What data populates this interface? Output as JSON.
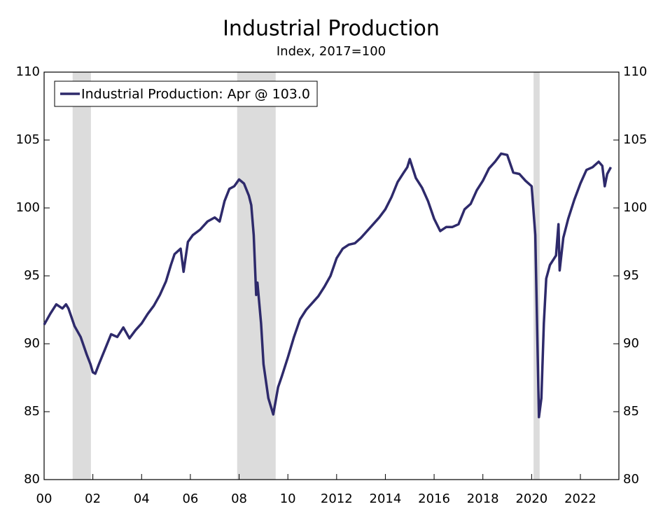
{
  "chart_data": {
    "type": "line",
    "title": "Industrial Production",
    "subtitle": "Index, 2017=100",
    "x": [
      2000.0,
      2000.25,
      2000.5,
      2000.75,
      2000.9,
      2001.0,
      2001.25,
      2001.5,
      2001.75,
      2001.9,
      2002.0,
      2002.1,
      2002.25,
      2002.5,
      2002.75,
      2003.0,
      2003.25,
      2003.5,
      2003.75,
      2004.0,
      2004.25,
      2004.5,
      2004.75,
      2005.0,
      2005.2,
      2005.35,
      2005.6,
      2005.72,
      2005.9,
      2006.1,
      2006.4,
      2006.7,
      2007.0,
      2007.2,
      2007.4,
      2007.6,
      2007.8,
      2008.0,
      2008.2,
      2008.4,
      2008.5,
      2008.6,
      2008.7,
      2008.75,
      2008.9,
      2009.0,
      2009.2,
      2009.4,
      2009.6,
      2009.75,
      2010.0,
      2010.25,
      2010.5,
      2010.75,
      2011.0,
      2011.25,
      2011.5,
      2011.75,
      2012.0,
      2012.25,
      2012.5,
      2012.75,
      2013.0,
      2013.25,
      2013.5,
      2013.75,
      2014.0,
      2014.25,
      2014.5,
      2014.75,
      2014.9,
      2015.0,
      2015.25,
      2015.5,
      2015.75,
      2016.0,
      2016.25,
      2016.5,
      2016.75,
      2017.0,
      2017.25,
      2017.5,
      2017.75,
      2018.0,
      2018.25,
      2018.5,
      2018.75,
      2019.0,
      2019.25,
      2019.5,
      2019.75,
      2020.0,
      2020.15,
      2020.3,
      2020.4,
      2020.5,
      2020.6,
      2020.75,
      2021.0,
      2021.1,
      2021.15,
      2021.3,
      2021.5,
      2021.75,
      2022.0,
      2022.25,
      2022.5,
      2022.75,
      2022.9,
      2023.0,
      2023.1,
      2023.25
    ],
    "series": [
      {
        "name": "Industrial Production: Apr @ 103.0",
        "color": "#2e2a6b",
        "values": [
          91.4,
          92.2,
          92.9,
          92.6,
          92.9,
          92.6,
          91.3,
          90.5,
          89.2,
          88.5,
          87.9,
          87.8,
          88.5,
          89.6,
          90.7,
          90.5,
          91.2,
          90.4,
          91.0,
          91.5,
          92.2,
          92.8,
          93.6,
          94.6,
          95.8,
          96.6,
          97.0,
          95.3,
          97.5,
          98.0,
          98.4,
          99.0,
          99.3,
          99.0,
          100.5,
          101.4,
          101.6,
          102.1,
          101.8,
          100.9,
          100.2,
          98.0,
          93.6,
          94.5,
          91.5,
          88.5,
          86.0,
          84.8,
          86.8,
          87.6,
          89.0,
          90.5,
          91.8,
          92.5,
          93.0,
          93.5,
          94.2,
          95.0,
          96.3,
          97.0,
          97.3,
          97.4,
          97.8,
          98.3,
          98.8,
          99.3,
          99.9,
          100.8,
          101.9,
          102.6,
          103.0,
          103.6,
          102.2,
          101.5,
          100.5,
          99.2,
          98.3,
          98.6,
          98.6,
          98.8,
          99.9,
          100.3,
          101.3,
          102.0,
          102.9,
          103.4,
          104.0,
          103.9,
          102.6,
          102.5,
          102.0,
          101.6,
          98.0,
          84.6,
          86.0,
          91.5,
          94.8,
          95.8,
          96.5,
          98.8,
          95.4,
          97.8,
          99.2,
          100.6,
          101.8,
          102.8,
          103.0,
          103.4,
          103.1,
          101.6,
          102.5,
          103.0
        ]
      }
    ],
    "recessions": [
      [
        2001.17,
        2001.92
      ],
      [
        2007.92,
        2009.5
      ],
      [
        2020.08,
        2020.33
      ]
    ],
    "xlim": [
      2000,
      2023.58
    ],
    "ylim": [
      80,
      110
    ],
    "xticks": [
      {
        "value": 2000,
        "label": "00"
      },
      {
        "value": 2002,
        "label": "02"
      },
      {
        "value": 2004,
        "label": "04"
      },
      {
        "value": 2006,
        "label": "06"
      },
      {
        "value": 2008,
        "label": "08"
      },
      {
        "value": 2010,
        "label": "10"
      },
      2012,
      2014,
      2016,
      2018,
      2020,
      2022
    ],
    "yticks": [
      80,
      85,
      90,
      95,
      100,
      105,
      110
    ],
    "legend": "top-left",
    "recession_color": "#dcdcdc"
  }
}
